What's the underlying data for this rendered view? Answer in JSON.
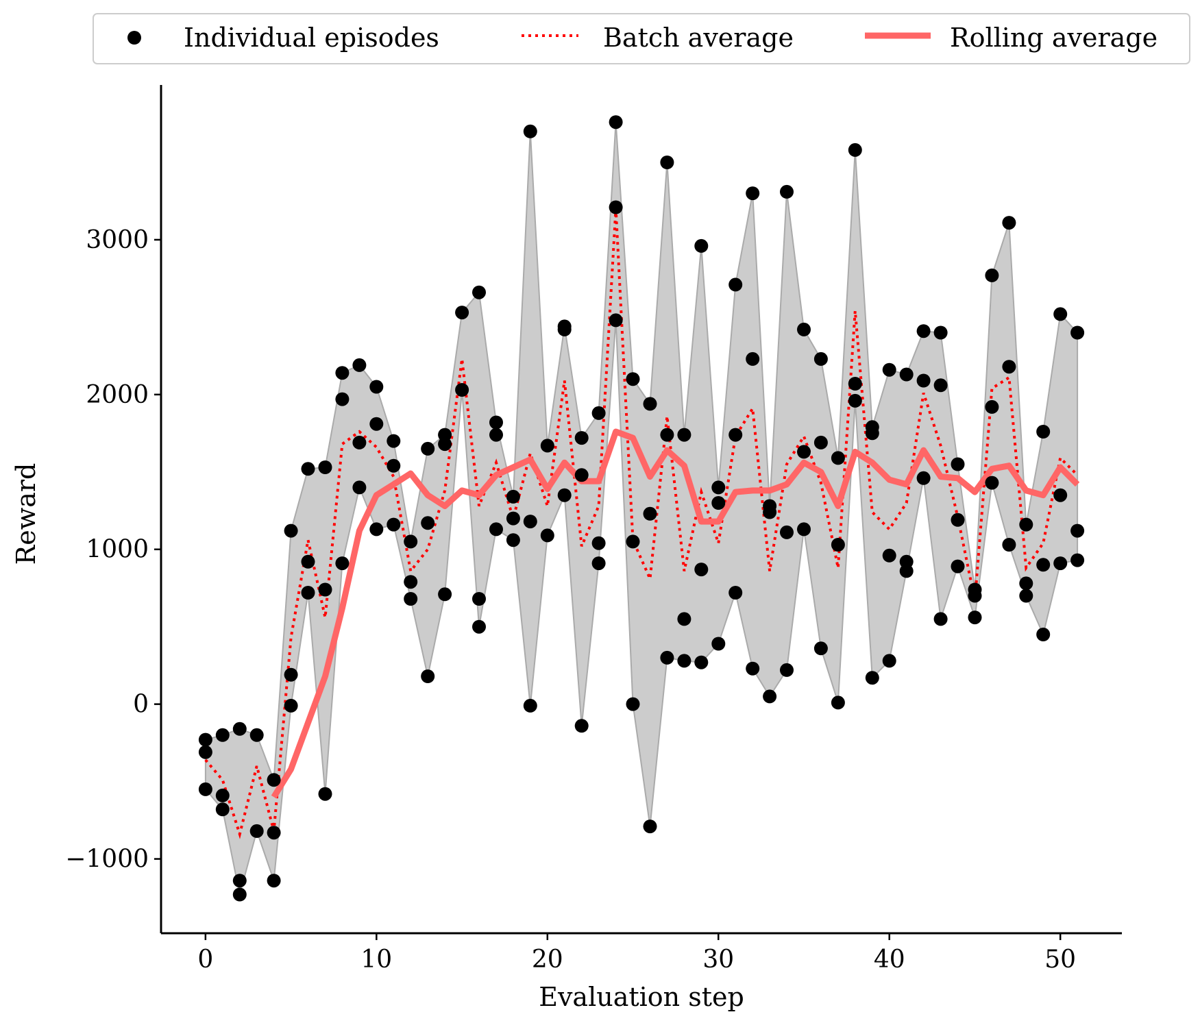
{
  "chart_data": {
    "type": "scatter",
    "xlabel": "Evaluation step",
    "ylabel": "Reward",
    "xlim": [
      -2.6,
      53.6
    ],
    "ylim": [
      -1480,
      4000
    ],
    "xticks": [
      0,
      10,
      20,
      30,
      40,
      50
    ],
    "yticks": [
      -1000,
      0,
      1000,
      2000,
      3000
    ],
    "ytick_labels": [
      "−1000",
      "0",
      "1000",
      "2000",
      "3000"
    ],
    "grid": false,
    "legend": {
      "placement": "top",
      "entries": [
        {
          "label": "Individual episodes",
          "marker": "dot"
        },
        {
          "label": "Batch average",
          "marker": "dotted-line"
        },
        {
          "label": "Rolling average",
          "marker": "thick-line"
        }
      ]
    },
    "colors": {
      "episodes": "#000000",
      "batch_average": "#ff0000",
      "rolling_average": "#ff6666",
      "band": "#cccccc",
      "band_edge": "#aaaaaa"
    },
    "series": [
      {
        "name": "Individual episodes",
        "points": [
          [
            0,
            -230
          ],
          [
            0,
            -310
          ],
          [
            0,
            -550
          ],
          [
            1,
            -200
          ],
          [
            1,
            -590
          ],
          [
            1,
            -680
          ],
          [
            2,
            -160
          ],
          [
            2,
            -1140
          ],
          [
            2,
            -1230
          ],
          [
            3,
            -200
          ],
          [
            3,
            -820
          ],
          [
            4,
            -490
          ],
          [
            4,
            -830
          ],
          [
            4,
            -1140
          ],
          [
            5,
            1120
          ],
          [
            5,
            190
          ],
          [
            5,
            -10
          ],
          [
            6,
            1520
          ],
          [
            6,
            920
          ],
          [
            6,
            720
          ],
          [
            7,
            1530
          ],
          [
            7,
            740
          ],
          [
            7,
            -580
          ],
          [
            8,
            2140
          ],
          [
            8,
            1970
          ],
          [
            8,
            910
          ],
          [
            9,
            2190
          ],
          [
            9,
            1690
          ],
          [
            9,
            1400
          ],
          [
            10,
            2050
          ],
          [
            10,
            1810
          ],
          [
            10,
            1130
          ],
          [
            11,
            1700
          ],
          [
            11,
            1540
          ],
          [
            11,
            1160
          ],
          [
            12,
            1050
          ],
          [
            12,
            790
          ],
          [
            12,
            680
          ],
          [
            13,
            1650
          ],
          [
            13,
            1170
          ],
          [
            13,
            180
          ],
          [
            14,
            1740
          ],
          [
            14,
            1680
          ],
          [
            14,
            710
          ],
          [
            15,
            2530
          ],
          [
            15,
            2030
          ],
          [
            16,
            2660
          ],
          [
            16,
            680
          ],
          [
            16,
            500
          ],
          [
            17,
            1820
          ],
          [
            17,
            1740
          ],
          [
            17,
            1130
          ],
          [
            18,
            1340
          ],
          [
            18,
            1200
          ],
          [
            18,
            1060
          ],
          [
            19,
            3700
          ],
          [
            19,
            1180
          ],
          [
            19,
            -10
          ],
          [
            20,
            1670
          ],
          [
            20,
            1090
          ],
          [
            21,
            2440
          ],
          [
            21,
            2420
          ],
          [
            21,
            1350
          ],
          [
            22,
            1720
          ],
          [
            22,
            1480
          ],
          [
            22,
            -140
          ],
          [
            23,
            1880
          ],
          [
            23,
            1040
          ],
          [
            23,
            910
          ],
          [
            24,
            3760
          ],
          [
            24,
            3210
          ],
          [
            24,
            2480
          ],
          [
            25,
            2100
          ],
          [
            25,
            1050
          ],
          [
            25,
            0
          ],
          [
            26,
            1940
          ],
          [
            26,
            1230
          ],
          [
            26,
            -790
          ],
          [
            27,
            3500
          ],
          [
            27,
            1740
          ],
          [
            27,
            300
          ],
          [
            28,
            1740
          ],
          [
            28,
            550
          ],
          [
            28,
            280
          ],
          [
            29,
            2960
          ],
          [
            29,
            870
          ],
          [
            29,
            270
          ],
          [
            30,
            1400
          ],
          [
            30,
            1300
          ],
          [
            30,
            390
          ],
          [
            31,
            2710
          ],
          [
            31,
            1740
          ],
          [
            31,
            720
          ],
          [
            32,
            3300
          ],
          [
            32,
            2230
          ],
          [
            32,
            230
          ],
          [
            33,
            1280
          ],
          [
            33,
            1240
          ],
          [
            33,
            50
          ],
          [
            34,
            3310
          ],
          [
            34,
            1110
          ],
          [
            34,
            220
          ],
          [
            35,
            2420
          ],
          [
            35,
            1630
          ],
          [
            35,
            1130
          ],
          [
            36,
            2230
          ],
          [
            36,
            1690
          ],
          [
            36,
            360
          ],
          [
            37,
            1590
          ],
          [
            37,
            1030
          ],
          [
            37,
            10
          ],
          [
            38,
            3580
          ],
          [
            38,
            2070
          ],
          [
            38,
            1960
          ],
          [
            39,
            1790
          ],
          [
            39,
            1750
          ],
          [
            39,
            170
          ],
          [
            40,
            2160
          ],
          [
            40,
            960
          ],
          [
            40,
            280
          ],
          [
            41,
            2130
          ],
          [
            41,
            920
          ],
          [
            41,
            860
          ],
          [
            42,
            2410
          ],
          [
            42,
            2090
          ],
          [
            42,
            1460
          ],
          [
            43,
            2400
          ],
          [
            43,
            2060
          ],
          [
            43,
            550
          ],
          [
            44,
            1550
          ],
          [
            44,
            1190
          ],
          [
            44,
            890
          ],
          [
            45,
            740
          ],
          [
            45,
            700
          ],
          [
            45,
            560
          ],
          [
            46,
            2770
          ],
          [
            46,
            1920
          ],
          [
            46,
            1430
          ],
          [
            47,
            3110
          ],
          [
            47,
            2180
          ],
          [
            47,
            1030
          ],
          [
            48,
            1160
          ],
          [
            48,
            780
          ],
          [
            48,
            700
          ],
          [
            49,
            1760
          ],
          [
            49,
            900
          ],
          [
            49,
            450
          ],
          [
            50,
            2520
          ],
          [
            50,
            1350
          ],
          [
            50,
            910
          ],
          [
            51,
            2400
          ],
          [
            51,
            1120
          ],
          [
            51,
            930
          ]
        ]
      },
      {
        "name": "Batch average",
        "x": [
          0,
          1,
          2,
          3,
          4,
          5,
          6,
          7,
          8,
          9,
          10,
          11,
          12,
          13,
          14,
          15,
          16,
          17,
          18,
          19,
          20,
          21,
          22,
          23,
          24,
          25,
          26,
          27,
          28,
          29,
          30,
          31,
          32,
          33,
          34,
          35,
          36,
          37,
          38,
          39,
          40,
          41,
          42,
          43,
          44,
          45,
          46,
          47,
          48,
          49,
          50,
          51
        ],
        "y": [
          -360,
          -490,
          -840,
          -400,
          -820,
          430,
          1060,
          560,
          1680,
          1760,
          1660,
          1470,
          860,
          1000,
          1380,
          2230,
          1280,
          1560,
          1200,
          1620,
          1280,
          2090,
          1020,
          1280,
          3200,
          1060,
          810,
          1860,
          860,
          1370,
          1040,
          1730,
          1910,
          860,
          1550,
          1730,
          1430,
          880,
          2540,
          1240,
          1130,
          1300,
          2010,
          1670,
          1210,
          670,
          2040,
          2110,
          880,
          1040,
          1590,
          1480
        ]
      },
      {
        "name": "Rolling average",
        "x": [
          4,
          5,
          6,
          7,
          8,
          9,
          10,
          11,
          12,
          13,
          14,
          15,
          16,
          17,
          18,
          19,
          20,
          21,
          22,
          23,
          24,
          25,
          26,
          27,
          28,
          29,
          30,
          31,
          32,
          33,
          34,
          35,
          36,
          37,
          38,
          39,
          40,
          41,
          42,
          43,
          44,
          45,
          46,
          47,
          48,
          49,
          50,
          51
        ],
        "y": [
          -600,
          -420,
          -120,
          180,
          620,
          1120,
          1350,
          1420,
          1490,
          1350,
          1280,
          1380,
          1350,
          1480,
          1530,
          1580,
          1390,
          1560,
          1440,
          1440,
          1760,
          1720,
          1470,
          1640,
          1540,
          1180,
          1180,
          1370,
          1380,
          1380,
          1420,
          1560,
          1500,
          1280,
          1630,
          1560,
          1450,
          1420,
          1640,
          1470,
          1460,
          1370,
          1520,
          1540,
          1380,
          1350,
          1530,
          1420
        ]
      }
    ]
  }
}
